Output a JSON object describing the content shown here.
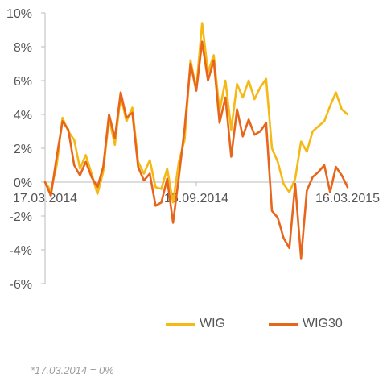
{
  "chart_data": {
    "type": "line",
    "ylim": [
      -6,
      10
    ],
    "yticks": [
      -6,
      -4,
      -2,
      0,
      2,
      4,
      6,
      8,
      10
    ],
    "ytick_labels": [
      "-6%",
      "-4%",
      "-2%",
      "0%",
      "2%",
      "4%",
      "6%",
      "8%",
      "10%"
    ],
    "xlim": [
      0,
      52
    ],
    "xticks": [
      {
        "x": 0,
        "label": "17.03.2014"
      },
      {
        "x": 26,
        "label": "15.09.2014"
      },
      {
        "x": 52,
        "label": "16.03.2015"
      }
    ],
    "grid": false,
    "legend_position": "bottom-right",
    "series": [
      {
        "name": "WIG",
        "color": "#f5b915",
        "x": [
          0,
          1,
          2,
          3,
          4,
          5,
          6,
          7,
          8,
          9,
          10,
          11,
          12,
          13,
          14,
          15,
          16,
          17,
          18,
          19,
          20,
          21,
          22,
          23,
          24,
          25,
          26,
          27,
          28,
          29,
          30,
          31,
          32,
          33,
          34,
          35,
          36,
          37,
          38,
          39,
          40,
          41,
          42,
          43,
          44,
          45,
          46,
          47,
          48,
          49,
          50,
          51,
          52
        ],
        "values": [
          0,
          -0.5,
          1.0,
          3.8,
          3.0,
          2.5,
          0.8,
          1.6,
          0.5,
          -0.7,
          0.6,
          3.8,
          2.2,
          5.1,
          3.6,
          4.4,
          1.2,
          0.5,
          1.3,
          -0.3,
          -0.4,
          0.8,
          -1.2,
          1.2,
          2.5,
          7.2,
          5.5,
          9.4,
          6.5,
          7.5,
          4.2,
          6.0,
          3.1,
          5.8,
          5.0,
          6.0,
          4.9,
          5.6,
          6.1,
          2.0,
          1.2,
          -0.1,
          -0.6,
          0.2,
          2.4,
          1.8,
          3.0,
          3.3,
          3.6,
          4.5,
          5.3,
          4.3,
          4.0
        ]
      },
      {
        "name": "WIG30",
        "color": "#e8661c",
        "x": [
          0,
          1,
          2,
          3,
          4,
          5,
          6,
          7,
          8,
          9,
          10,
          11,
          12,
          13,
          14,
          15,
          16,
          17,
          18,
          19,
          20,
          21,
          22,
          23,
          24,
          25,
          26,
          27,
          28,
          29,
          30,
          31,
          32,
          33,
          34,
          35,
          36,
          37,
          38,
          39,
          40,
          41,
          42,
          43,
          44,
          45,
          46,
          47,
          48,
          49,
          50,
          51,
          52
        ],
        "values": [
          0,
          -0.8,
          1.5,
          3.6,
          3.1,
          1.0,
          0.4,
          1.2,
          0.3,
          -0.3,
          0.9,
          4.0,
          2.6,
          5.3,
          3.8,
          4.1,
          0.9,
          0.1,
          0.5,
          -1.4,
          -1.2,
          0.2,
          -2.4,
          0.3,
          3.2,
          7.0,
          5.4,
          8.3,
          6.0,
          7.2,
          3.5,
          5.0,
          1.5,
          4.3,
          2.7,
          3.7,
          2.8,
          3.0,
          3.5,
          -1.7,
          -2.1,
          -3.3,
          -3.9,
          -0.1,
          -4.5,
          -0.5,
          0.3,
          0.6,
          1.0,
          -0.6,
          0.9,
          0.4,
          -0.3
        ]
      }
    ]
  },
  "footnote": "*17.03.2014 = 0%"
}
